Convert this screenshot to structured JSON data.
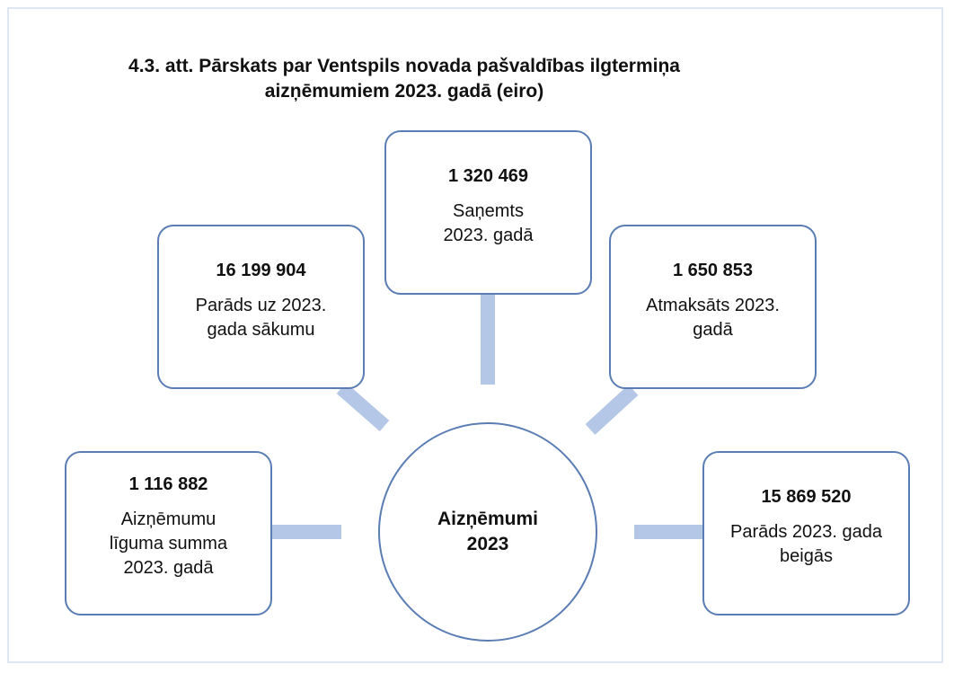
{
  "title": [
    "4.3. att. Pārskats par Ventspils novada pašvaldības ilgtermiņa",
    "aizņēmumiem 2023. gadā (eiro)"
  ],
  "center": {
    "label": "Aizņēmumi 2023"
  },
  "nodes": [
    {
      "value": "1 320 469",
      "label": "Saņemts 2023. gadā"
    },
    {
      "value": "16 199 904",
      "label": "Parāds uz 2023. gada sākumu"
    },
    {
      "value": "1 650 853",
      "label": "Atmaksāts 2023. gadā"
    },
    {
      "value": "1 116 882",
      "label": "Aizņēmumu līguma summa 2023. gadā"
    },
    {
      "value": "15 869 520",
      "label": "Parāds 2023. gada beigās"
    }
  ]
}
